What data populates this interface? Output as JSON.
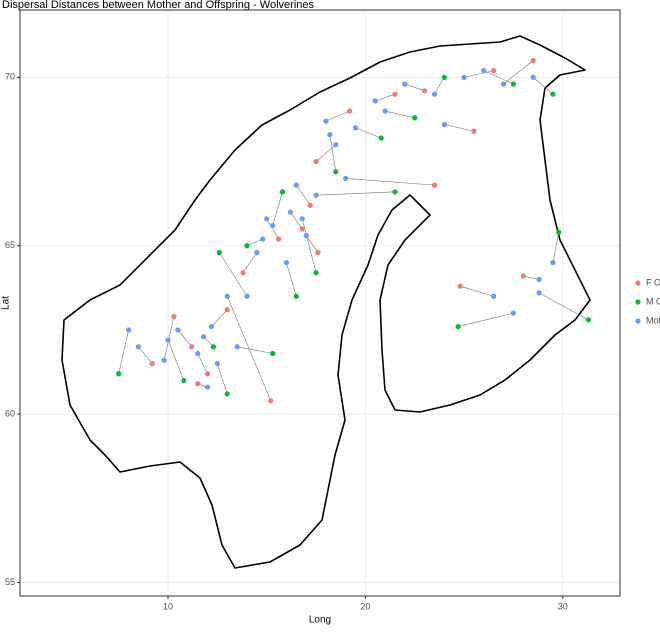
{
  "chart_data": {
    "type": "scatter",
    "title": "Dispersal Distances between Mother and Offspring - Wolverines",
    "x_label": "Long",
    "y_label": "Lat",
    "xlim": [
      2.5,
      32.9
    ],
    "ylim": [
      54.6,
      72.0
    ],
    "xticks": [
      10,
      20,
      30
    ],
    "yticks": [
      55,
      60,
      65,
      70
    ],
    "grid": true,
    "legend_position": "right",
    "series": [
      {
        "name": "F Of",
        "color": "#F8766D",
        "x": [
          9.2,
          11.2,
          12.0,
          13.0,
          10.3,
          15.6,
          16.8,
          17.6,
          13.8,
          17.2,
          19.2,
          21.5,
          23.0,
          26.5,
          28.5,
          25.5,
          28.0,
          24.8,
          15.2,
          23.5,
          11.5,
          17.5
        ],
        "y": [
          61.5,
          62.0,
          61.2,
          63.1,
          62.9,
          65.2,
          65.5,
          64.8,
          64.2,
          66.2,
          69.0,
          69.5,
          69.6,
          70.2,
          70.5,
          68.4,
          64.1,
          63.8,
          60.4,
          66.8,
          60.9,
          67.5
        ]
      },
      {
        "name": "M O",
        "color": "#00BA38",
        "x": [
          7.5,
          10.8,
          12.3,
          15.3,
          15.8,
          17.5,
          14.0,
          16.5,
          21.5,
          20.8,
          22.5,
          24.0,
          27.5,
          29.5,
          24.7,
          31.3,
          29.8,
          13.0,
          18.5,
          12.6
        ],
        "y": [
          61.2,
          61.0,
          62.0,
          61.8,
          66.6,
          64.2,
          65.0,
          63.5,
          66.6,
          68.2,
          68.8,
          70.0,
          69.8,
          69.5,
          62.6,
          62.8,
          65.4,
          60.6,
          67.2,
          64.8
        ]
      },
      {
        "name": "Moth",
        "color": "#619CFF",
        "x": [
          8.5,
          10.5,
          11.5,
          12.2,
          9.8,
          15.0,
          16.2,
          17.0,
          14.5,
          16.5,
          18.0,
          20.5,
          22.0,
          25.0,
          27.0,
          24.0,
          28.8,
          26.5,
          13.0,
          19.0,
          12.0,
          18.5,
          8.0,
          10.0,
          11.8,
          13.5,
          15.3,
          16.8,
          14.8,
          16.0,
          17.5,
          19.5,
          21.0,
          23.5,
          26.0,
          28.5,
          27.5,
          28.8,
          29.5,
          12.5,
          18.2,
          14.0
        ],
        "y": [
          62.0,
          62.5,
          61.8,
          62.6,
          61.6,
          65.8,
          66.0,
          65.3,
          64.8,
          66.8,
          68.7,
          69.3,
          69.8,
          70.0,
          69.8,
          68.6,
          64.0,
          63.5,
          63.5,
          67.0,
          60.8,
          68.0,
          62.5,
          62.2,
          62.3,
          62.0,
          65.6,
          65.8,
          65.2,
          64.5,
          66.5,
          68.5,
          69.0,
          69.5,
          70.2,
          70.0,
          63.0,
          63.6,
          64.5,
          61.5,
          68.3,
          63.5
        ]
      }
    ]
  }
}
